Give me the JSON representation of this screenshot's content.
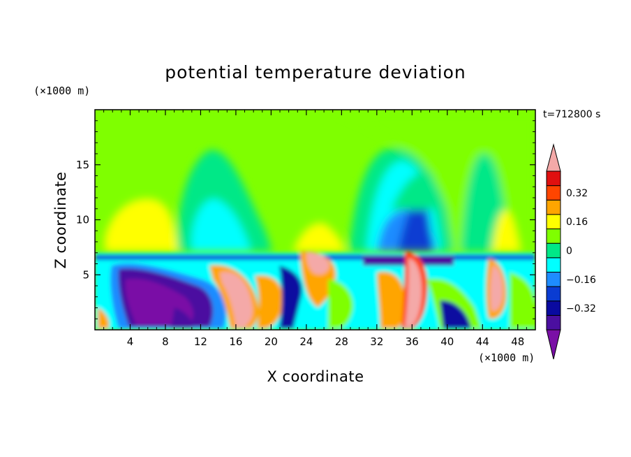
{
  "chart_data": {
    "type": "heatmap",
    "title": "potential temperature deviation",
    "xlabel": "X coordinate",
    "ylabel": "Z coordinate",
    "x_unit": "(×1000 m)",
    "y_unit": "(×1000 m)",
    "time_label": "t=712800 s",
    "xlim": [
      0,
      50
    ],
    "ylim": [
      0,
      20
    ],
    "x_ticks": [
      4,
      8,
      12,
      16,
      20,
      24,
      28,
      32,
      36,
      40,
      44,
      48
    ],
    "x_ticklabels": [
      "4",
      "8",
      "12",
      "16",
      "20",
      "24",
      "28",
      "32",
      "36",
      "40",
      "44",
      "48"
    ],
    "y_ticks": [
      5,
      10,
      15
    ],
    "y_ticklabels": [
      "5",
      "10",
      "15"
    ],
    "colorbar": {
      "levels": [
        -0.4,
        -0.32,
        -0.24,
        -0.16,
        -0.08,
        0,
        0.08,
        0.16,
        0.24,
        0.32,
        0.4
      ],
      "colors": [
        "#7a0fa6",
        "#4b0fa0",
        "#0a0aa0",
        "#0a3cd2",
        "#1e8cff",
        "#00ffff",
        "#00e887",
        "#7fff00",
        "#ffff00",
        "#ffa500",
        "#ff4500",
        "#e01010",
        "#f4a9a8"
      ],
      "tick_values": [
        -0.32,
        -0.16,
        0,
        0.16,
        0.32
      ],
      "tick_labels": [
        "−0.32",
        "−0.16",
        "0",
        "0.16",
        "0.32"
      ],
      "extend": "both"
    },
    "field_description_points": [
      {
        "x": 4,
        "z": 10,
        "value": 0.2
      },
      {
        "x": 13,
        "z": 11,
        "value": -0.1
      },
      {
        "x": 35,
        "z": 9,
        "value": -0.3
      },
      {
        "x": 6,
        "z": 3,
        "value": -0.4
      },
      {
        "x": 18,
        "z": 3,
        "value": 0.4
      },
      {
        "x": 35,
        "z": 2,
        "value": 0.4
      },
      {
        "x": 24,
        "z": 6,
        "value": 0.4
      },
      {
        "x": 46,
        "z": 3,
        "value": 0.3
      }
    ]
  }
}
